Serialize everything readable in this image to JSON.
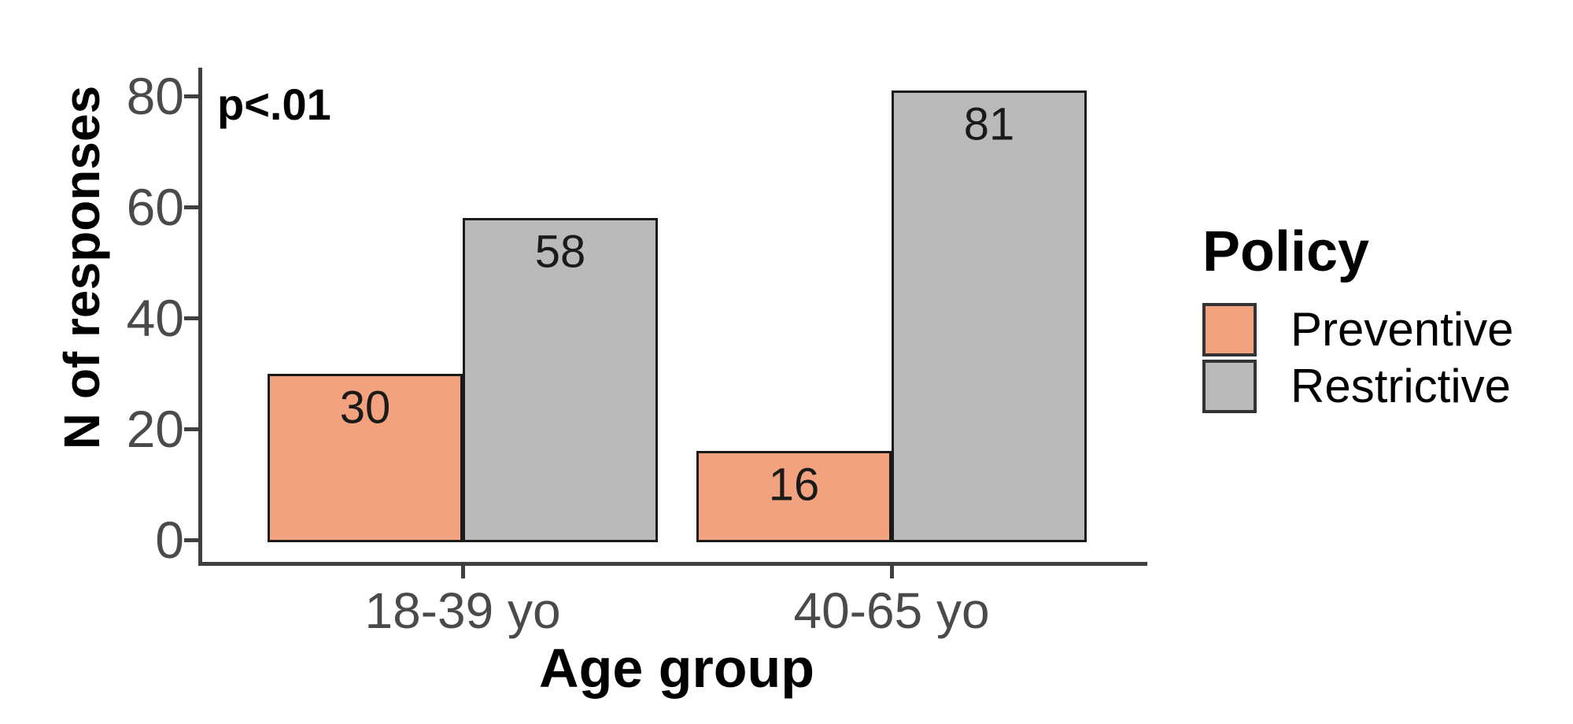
{
  "chart_data": {
    "type": "bar",
    "title": "",
    "annotation": "p<.01",
    "xlabel": "Age group",
    "ylabel": "N of responses",
    "categories": [
      "18-39 yo",
      "40-65 yo"
    ],
    "series": [
      {
        "name": "Preventive",
        "color": "#F3A27F",
        "values": [
          30,
          16
        ]
      },
      {
        "name": "Restrictive",
        "color": "#BABABA",
        "values": [
          58,
          81
        ]
      }
    ],
    "bar_labels": [
      [
        "30",
        "16"
      ],
      [
        "58",
        "81"
      ]
    ],
    "ylim": [
      0,
      80
    ],
    "yticks": [
      "0",
      "20",
      "40",
      "60",
      "80"
    ],
    "grid": false,
    "legend": {
      "title": "Policy",
      "position": "right",
      "entries": [
        "Preventive",
        "Restrictive"
      ]
    }
  }
}
